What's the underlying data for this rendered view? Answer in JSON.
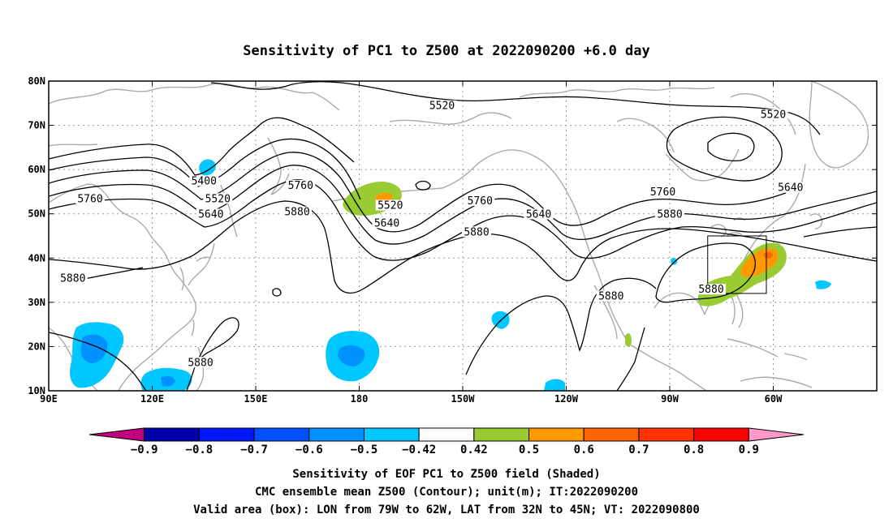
{
  "title": "Sensitivity of PC1 to Z500 at 2022090200 +6.0 day",
  "map": {
    "lat_labels": [
      "80N",
      "70N",
      "60N",
      "50N",
      "40N",
      "30N",
      "20N",
      "10N"
    ],
    "lat_values": [
      80,
      70,
      60,
      50,
      40,
      30,
      20,
      10
    ],
    "lon_labels": [
      "90E",
      "120E",
      "150E",
      "180",
      "150W",
      "120W",
      "90W",
      "60W"
    ],
    "lon_values": [
      90,
      120,
      150,
      180,
      210,
      240,
      270,
      300
    ],
    "extent": {
      "lon_min": 90,
      "lon_max": 330,
      "lat_min": 10,
      "lat_max": 80
    },
    "contour_labels": [
      {
        "text": "5520",
        "lon": 204,
        "lat": 74
      },
      {
        "text": "5520",
        "lon": 300,
        "lat": 72
      },
      {
        "text": "5400",
        "lon": 135,
        "lat": 57
      },
      {
        "text": "5760",
        "lon": 102,
        "lat": 53
      },
      {
        "text": "5520",
        "lon": 139,
        "lat": 53
      },
      {
        "text": "5640",
        "lon": 137,
        "lat": 49.5
      },
      {
        "text": "5760",
        "lon": 163,
        "lat": 56
      },
      {
        "text": "5880",
        "lon": 162,
        "lat": 50
      },
      {
        "text": "5520",
        "lon": 189,
        "lat": 51.5
      },
      {
        "text": "5640",
        "lon": 188,
        "lat": 47.5
      },
      {
        "text": "5760",
        "lon": 215,
        "lat": 52.5
      },
      {
        "text": "5880",
        "lon": 214,
        "lat": 45.5
      },
      {
        "text": "5640",
        "lon": 232,
        "lat": 49.5
      },
      {
        "text": "5760",
        "lon": 268,
        "lat": 54.5
      },
      {
        "text": "5640",
        "lon": 305,
        "lat": 55.5
      },
      {
        "text": "5880",
        "lon": 270,
        "lat": 49.5
      },
      {
        "text": "5880",
        "lon": 97,
        "lat": 35
      },
      {
        "text": "5880",
        "lon": 253,
        "lat": 31
      },
      {
        "text": "5880",
        "lon": 282,
        "lat": 32.5
      },
      {
        "text": "5880",
        "lon": 134,
        "lat": 16
      }
    ],
    "box": {
      "lon_min": 281,
      "lon_max": 298,
      "lat_min": 32,
      "lat_max": 45
    }
  },
  "colorbar": {
    "labels": [
      "−0.9",
      "−0.8",
      "−0.7",
      "−0.6",
      "−0.5",
      "−0.42",
      "0.42",
      "0.5",
      "0.6",
      "0.7",
      "0.8",
      "0.9"
    ],
    "colors": [
      "#c0007f",
      "#0000a8",
      "#0018ff",
      "#0050ff",
      "#0090ff",
      "#00c8ff",
      "#ffffff",
      "#99cc33",
      "#ff9900",
      "#ff6600",
      "#ff3300",
      "#ff0000",
      "#ff99cc"
    ]
  },
  "caption": {
    "line1": "Sensitivity of EOF PC1 to Z500 field (Shaded)",
    "line2": "CMC ensemble mean Z500 (Contour); unit(m); IT:2022090200",
    "line3": "Valid area (box): LON from 79W to 62W, LAT from 32N to 45N; VT: 2022090800"
  }
}
